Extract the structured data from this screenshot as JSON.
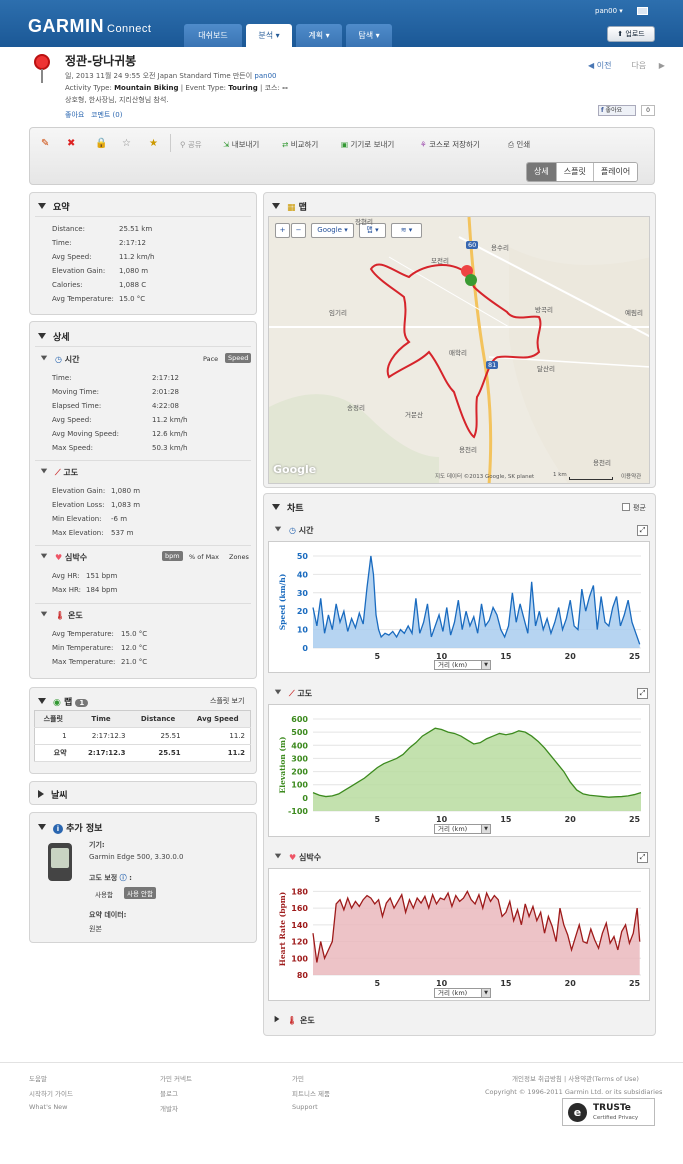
{
  "header": {
    "logo": "GARMIN",
    "logo_sub": "Connect",
    "tabs": [
      "대쉬보드",
      "분석 ▾",
      "계획 ▾",
      "탐색 ▾"
    ],
    "user": "pan00 ▾",
    "upload": "업로드"
  },
  "activity": {
    "title": "정관-당나귀봉",
    "line1_prefix": "일, 2013 11월 24 9:55 오전 Japan Standard Time 만든이",
    "author": "pan00",
    "type_label": "Activity Type:",
    "type_value": "Mountain Biking",
    "event_label": "| Event Type:",
    "event_value": "Touring",
    "course_label": "| 코스:",
    "course_value": "--",
    "description": "상호형, 한사장님, 지리산형님 참석.",
    "like_link": "좋아요",
    "comment_link": "코멘트 (0)",
    "prev": "이전",
    "next": "다음",
    "like_button": "좋아요",
    "like_count": "0"
  },
  "toolbar": {
    "actions": [
      "공유",
      "내보내기",
      "비교하기",
      "기기로 보내기",
      "코스로 저장하기",
      "인쇄"
    ],
    "views": [
      "상세",
      "스플릿",
      "플레이어"
    ]
  },
  "summary": {
    "title": "요약",
    "rows": [
      {
        "label": "Distance:",
        "value": "25.51 km"
      },
      {
        "label": "Time:",
        "value": "2:17:12"
      },
      {
        "label": "Avg Speed:",
        "value": "11.2 km/h"
      },
      {
        "label": "Elevation Gain:",
        "value": "1,080 m"
      },
      {
        "label": "Calories:",
        "value": "1,088 C"
      },
      {
        "label": "Avg Temperature:",
        "value": "15.0 °C"
      }
    ]
  },
  "details": {
    "title": "상세",
    "time": {
      "title": "시간",
      "pace": "Pace",
      "speed": "Speed",
      "rows": [
        {
          "label": "Time:",
          "value": "2:17:12"
        },
        {
          "label": "Moving Time:",
          "value": "2:01:28"
        },
        {
          "label": "Elapsed Time:",
          "value": "4:22:08"
        },
        {
          "label": "Avg Speed:",
          "value": "11.2 km/h"
        },
        {
          "label": "Avg Moving Speed:",
          "value": "12.6 km/h"
        },
        {
          "label": "Max Speed:",
          "value": "50.3 km/h"
        }
      ]
    },
    "elevation": {
      "title": "고도",
      "rows": [
        {
          "label": "Elevation Gain:",
          "value": "1,080 m"
        },
        {
          "label": "Elevation Loss:",
          "value": "1,083 m"
        },
        {
          "label": "Min Elevation:",
          "value": "-6 m"
        },
        {
          "label": "Max Elevation:",
          "value": "537 m"
        }
      ]
    },
    "hr": {
      "title": "심박수",
      "bpm": "bpm",
      "pct": "% of Max",
      "zones": "Zones",
      "rows": [
        {
          "label": "Avg HR:",
          "value": "151 bpm"
        },
        {
          "label": "Max HR:",
          "value": "184 bpm"
        }
      ]
    },
    "temp": {
      "title": "온도",
      "rows": [
        {
          "label": "Avg Temperature:",
          "value": "15.0 °C"
        },
        {
          "label": "Min Temperature:",
          "value": "12.0 °C"
        },
        {
          "label": "Max Temperature:",
          "value": "21.0 °C"
        }
      ]
    }
  },
  "laps": {
    "title": "랩",
    "count": "1",
    "split_view": "스플릿 보기",
    "headers": [
      "스플릿",
      "Time",
      "Distance",
      "Avg Speed"
    ],
    "rows": [
      [
        "1",
        "2:17:12.3",
        "25.51",
        "11.2"
      ],
      [
        "요약",
        "2:17:12.3",
        "25.51",
        "11.2"
      ]
    ]
  },
  "weather": {
    "title": "날씨"
  },
  "extra": {
    "title": "추가 정보",
    "device_label": "기기:",
    "device": "Garmin Edge 500, 3.30.0.0",
    "elev_corr_label": "고도 보정",
    "use": "사용함",
    "nouse": "사용 안함",
    "summary_label": "요약 데이터:",
    "summary_value": "원본"
  },
  "map": {
    "title": "맵",
    "google": "Google",
    "map_type": "맵",
    "labels": [
      "장현리",
      "용수리",
      "모전리",
      "임기리",
      "방곡리",
      "예림리",
      "매학리",
      "달산리",
      "송정리",
      "거문산",
      "용천리",
      "용천리",
      "60",
      "81"
    ],
    "attribution": "지도 데이터 ©2013 Google, SK planet",
    "scale": "1 km",
    "terms": "이용약관",
    "watermark": "Google"
  },
  "charts": {
    "title": "차트",
    "avg_label": "평균",
    "axis_select": "거리 (km)",
    "time_title": "시간",
    "elev_title": "고도",
    "hr_title": "심박수",
    "temp_title": "온도"
  },
  "chart_data": [
    {
      "type": "area",
      "xlabel": "",
      "ylabel": "Speed (km/h)",
      "xlim": [
        0,
        25.5
      ],
      "ylim": [
        0,
        50
      ],
      "xticks": [
        5,
        10,
        15,
        20,
        25
      ],
      "yticks": [
        0,
        10,
        20,
        30,
        40,
        50
      ],
      "color": "#1a6bbf",
      "fill": "#a9cdee",
      "x": [
        0,
        0.3,
        0.6,
        0.9,
        1.2,
        1.5,
        1.8,
        2.1,
        2.4,
        2.7,
        3.0,
        3.3,
        3.6,
        3.9,
        4.2,
        4.5,
        4.7,
        4.9,
        5.1,
        5.3,
        5.6,
        5.9,
        6.2,
        6.5,
        6.8,
        7.1,
        7.4,
        7.7,
        8.0,
        8.3,
        8.6,
        8.9,
        9.2,
        9.5,
        9.8,
        10.1,
        10.4,
        10.7,
        11.0,
        11.3,
        11.6,
        11.9,
        12.2,
        12.5,
        12.8,
        13.1,
        13.4,
        13.7,
        14.0,
        14.3,
        14.6,
        14.9,
        15.2,
        15.5,
        15.8,
        16.1,
        16.4,
        16.7,
        17.0,
        17.3,
        17.6,
        17.9,
        18.2,
        18.5,
        18.8,
        19.1,
        19.4,
        19.7,
        20.0,
        20.3,
        20.6,
        20.9,
        21.2,
        21.5,
        21.8,
        22.1,
        22.4,
        22.7,
        23.0,
        23.3,
        23.6,
        23.9,
        24.2,
        24.5,
        24.8,
        25.1,
        25.4
      ],
      "y": [
        22,
        12,
        27,
        8,
        18,
        10,
        24,
        14,
        20,
        9,
        16,
        11,
        19,
        13,
        33,
        50,
        40,
        18,
        10,
        6,
        8,
        7,
        9,
        6,
        10,
        8,
        12,
        8,
        27,
        8,
        14,
        24,
        6,
        12,
        18,
        9,
        22,
        7,
        14,
        26,
        10,
        20,
        12,
        17,
        8,
        24,
        12,
        15,
        22,
        18,
        10,
        6,
        12,
        30,
        14,
        24,
        16,
        8,
        36,
        12,
        20,
        10,
        16,
        8,
        14,
        22,
        10,
        16,
        26,
        12,
        10,
        32,
        20,
        28,
        34,
        10,
        28,
        14,
        12,
        22,
        28,
        12,
        18,
        26,
        14,
        8,
        2
      ]
    },
    {
      "type": "area",
      "xlabel": "",
      "ylabel": "Elevation (m)",
      "xlim": [
        0,
        25.5
      ],
      "ylim": [
        -100,
        600
      ],
      "xticks": [
        5,
        10,
        15,
        20,
        25
      ],
      "yticks": [
        -100,
        0,
        100,
        200,
        300,
        400,
        500,
        600
      ],
      "color": "#3c8a1e",
      "fill": "#b9dca0",
      "x": [
        0,
        0.5,
        1,
        1.5,
        2,
        2.5,
        3,
        3.5,
        4,
        4.5,
        5,
        5.5,
        6,
        6.5,
        7,
        7.5,
        8,
        8.5,
        9,
        9.5,
        10,
        10.5,
        11,
        11.5,
        12,
        12.5,
        13,
        13.5,
        14,
        14.5,
        15,
        15.5,
        16,
        16.5,
        17,
        17.5,
        18,
        18.5,
        19,
        19.5,
        20,
        20.5,
        21,
        21.5,
        22,
        22.5,
        23,
        23.5,
        24,
        24.5,
        25,
        25.5
      ],
      "y": [
        40,
        20,
        10,
        15,
        30,
        60,
        90,
        120,
        150,
        190,
        230,
        260,
        280,
        300,
        330,
        380,
        420,
        470,
        500,
        530,
        520,
        500,
        490,
        470,
        440,
        410,
        420,
        450,
        470,
        490,
        480,
        490,
        510,
        500,
        470,
        430,
        380,
        320,
        260,
        200,
        120,
        60,
        30,
        20,
        15,
        10,
        5,
        8,
        10,
        15,
        25,
        40
      ]
    },
    {
      "type": "area",
      "xlabel": "",
      "ylabel": "Heart Rate (bpm)",
      "xlim": [
        0,
        25.5
      ],
      "ylim": [
        80,
        190
      ],
      "xticks": [
        5,
        10,
        15,
        20,
        25
      ],
      "yticks": [
        80,
        100,
        120,
        140,
        160,
        180
      ],
      "color": "#9e1b1b",
      "fill": "#eab9bd",
      "x": [
        0,
        0.3,
        0.6,
        0.9,
        1.2,
        1.5,
        1.8,
        2.1,
        2.4,
        2.7,
        3.0,
        3.3,
        3.6,
        3.9,
        4.2,
        4.5,
        4.8,
        5.1,
        5.4,
        5.7,
        6.0,
        6.3,
        6.6,
        6.9,
        7.2,
        7.5,
        7.8,
        8.1,
        8.4,
        8.7,
        9.0,
        9.3,
        9.6,
        9.9,
        10.2,
        10.5,
        10.8,
        11.1,
        11.4,
        11.7,
        12.0,
        12.3,
        12.6,
        12.9,
        13.2,
        13.5,
        13.8,
        14.1,
        14.4,
        14.7,
        15.0,
        15.3,
        15.6,
        15.9,
        16.2,
        16.5,
        16.8,
        17.1,
        17.4,
        17.7,
        18.0,
        18.3,
        18.6,
        18.9,
        19.2,
        19.5,
        19.8,
        20.1,
        20.4,
        20.7,
        21.0,
        21.3,
        21.6,
        21.9,
        22.2,
        22.5,
        22.8,
        23.1,
        23.4,
        23.7,
        24.0,
        24.3,
        24.6,
        24.9,
        25.2,
        25.4
      ],
      "y": [
        130,
        95,
        120,
        100,
        110,
        120,
        165,
        170,
        158,
        172,
        160,
        168,
        162,
        170,
        175,
        172,
        165,
        170,
        150,
        166,
        172,
        160,
        168,
        176,
        155,
        170,
        160,
        172,
        166,
        174,
        160,
        176,
        165,
        172,
        170,
        178,
        162,
        175,
        168,
        172,
        180,
        170,
        165,
        176,
        160,
        178,
        168,
        175,
        170,
        150,
        155,
        168,
        145,
        158,
        140,
        165,
        150,
        162,
        145,
        155,
        130,
        150,
        138,
        120,
        160,
        140,
        128,
        110,
        125,
        140,
        120,
        118,
        135,
        122,
        112,
        130,
        142,
        118,
        126,
        110,
        132,
        140,
        118,
        130,
        160,
        120
      ]
    }
  ],
  "footer": {
    "col1": [
      "도움말",
      "시작하기 가이드",
      "What's New"
    ],
    "col2": [
      "가민 커넥트",
      "블로그",
      "개발자"
    ],
    "col3": [
      "가민",
      "피트니스 제품",
      "Support"
    ],
    "privacy": "개인정보 취급방침 | 사용약관(Terms of Use)",
    "copyright": "Copyright © 1996-2011 Garmin Ltd. or its subsidiaries",
    "truste1": "TRUSTe",
    "truste2": "Certified Privacy"
  }
}
